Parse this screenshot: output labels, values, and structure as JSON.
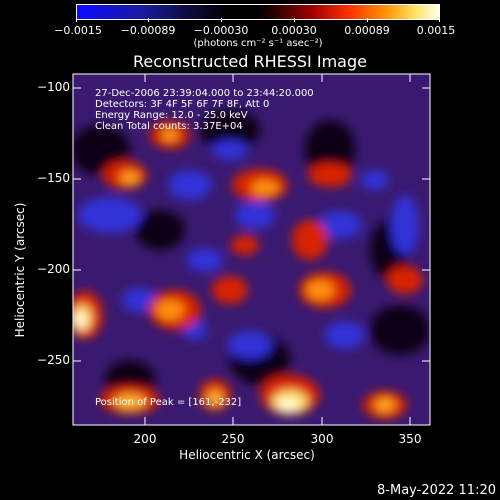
{
  "colorbar": {
    "ticks": [
      "−0.0015",
      "−0.00089",
      "−0.00030",
      "0.00030",
      "0.00089",
      "0.0015"
    ],
    "unit_label": "(photons cm⁻² s⁻¹ asec⁻²)"
  },
  "plot": {
    "title": "Reconstructed RHESSI Image",
    "info_lines": [
      "27-Dec-2006 23:39:04.000 to 23:44:20.000",
      "Detectors: 3F 4F 5F 6F 7F 8F, Att 0",
      "Energy Range: 12.0 - 25.0 keV",
      "Clean     Total counts: 3.37E+04"
    ],
    "peak_label": "Position of Peak = [161,-232]",
    "xlabel": "Heliocentric X (arcsec)",
    "ylabel": "Heliocentric Y (arcsec)",
    "xticks": [
      "200",
      "250",
      "300",
      "350"
    ],
    "yticks": [
      "−100",
      "−150",
      "−200",
      "−250"
    ]
  },
  "footer": {
    "date": "8-May-2022 11:20"
  },
  "colors": {
    "negative_low": "#1010ff",
    "zero": "#000000",
    "mid": "#ff2000",
    "positive_high": "#ffffe0"
  }
}
